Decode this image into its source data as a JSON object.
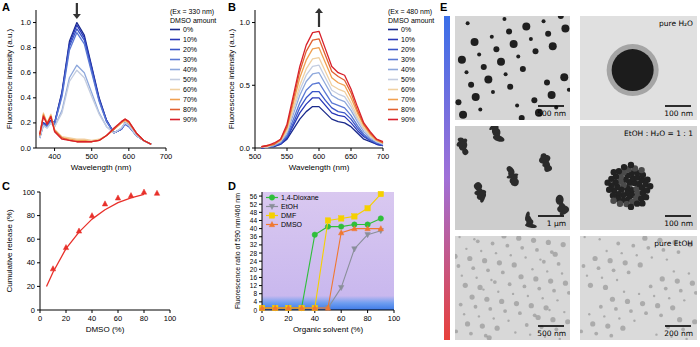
{
  "panels": [
    "A",
    "B",
    "C",
    "D",
    "E"
  ],
  "chart_data": [
    {
      "type": "line",
      "annotations": [
        "(Ex = 330 nm)",
        "DMSO amount"
      ],
      "x_label": "Wavelength (nm)",
      "y_label": "Fluorescence intensity (a.u.)",
      "x": [
        360,
        370,
        380,
        390,
        400,
        420,
        440,
        460,
        480,
        500,
        520,
        540,
        560,
        580,
        590,
        600,
        620,
        640,
        660
      ],
      "xlim": [
        350,
        700
      ],
      "xticks": [
        400,
        500,
        600,
        700
      ],
      "ylim": [
        0,
        1.1
      ],
      "yticks": [
        {
          "value": 0,
          "label": "0.0"
        },
        0.2,
        0.4,
        0.6,
        0.8,
        {
          "value": 1,
          "label": "1.0"
        }
      ],
      "legend": "right",
      "grid": false,
      "series": [
        {
          "name": "0%",
          "color": "#1a2a8c",
          "values": [
            0.08,
            0.2,
            0.18,
            0.22,
            0.2,
            0.45,
            0.85,
            1.0,
            0.9,
            0.65,
            0.4,
            0.22,
            0.12,
            0.15,
            0.2,
            0.18,
            0.1,
            0.06,
            0.03
          ]
        },
        {
          "name": "10%",
          "color": "#2838b8",
          "values": [
            0.08,
            0.2,
            0.18,
            0.22,
            0.2,
            0.44,
            0.83,
            0.98,
            0.88,
            0.64,
            0.39,
            0.22,
            0.12,
            0.15,
            0.2,
            0.18,
            0.1,
            0.06,
            0.03
          ]
        },
        {
          "name": "20%",
          "color": "#3a55c8",
          "values": [
            0.08,
            0.19,
            0.17,
            0.21,
            0.19,
            0.43,
            0.81,
            0.95,
            0.86,
            0.62,
            0.38,
            0.21,
            0.12,
            0.15,
            0.19,
            0.17,
            0.1,
            0.06,
            0.03
          ]
        },
        {
          "name": "30%",
          "color": "#5a78d4",
          "values": [
            0.08,
            0.19,
            0.17,
            0.21,
            0.19,
            0.41,
            0.78,
            0.92,
            0.83,
            0.6,
            0.37,
            0.21,
            0.12,
            0.15,
            0.19,
            0.17,
            0.1,
            0.06,
            0.03
          ]
        },
        {
          "name": "40%",
          "color": "#8ea8dc",
          "values": [
            0.08,
            0.18,
            0.16,
            0.2,
            0.17,
            0.3,
            0.56,
            0.66,
            0.6,
            0.44,
            0.28,
            0.17,
            0.12,
            0.16,
            0.2,
            0.18,
            0.1,
            0.06,
            0.03
          ]
        },
        {
          "name": "50%",
          "color": "#c4cde0",
          "values": [
            0.08,
            0.18,
            0.16,
            0.2,
            0.17,
            0.28,
            0.53,
            0.62,
            0.56,
            0.41,
            0.27,
            0.17,
            0.12,
            0.16,
            0.2,
            0.18,
            0.1,
            0.06,
            0.03
          ]
        },
        {
          "name": "60%",
          "color": "#f0d0a0",
          "values": [
            0.1,
            0.28,
            0.2,
            0.27,
            0.15,
            0.09,
            0.08,
            0.07,
            0.07,
            0.06,
            0.07,
            0.1,
            0.15,
            0.2,
            0.22,
            0.2,
            0.12,
            0.06,
            0.03
          ]
        },
        {
          "name": "70%",
          "color": "#f0a050",
          "values": [
            0.1,
            0.27,
            0.2,
            0.26,
            0.14,
            0.08,
            0.07,
            0.06,
            0.06,
            0.05,
            0.06,
            0.1,
            0.15,
            0.2,
            0.22,
            0.2,
            0.12,
            0.06,
            0.03
          ]
        },
        {
          "name": "80%",
          "color": "#e06030",
          "values": [
            0.1,
            0.26,
            0.19,
            0.25,
            0.14,
            0.08,
            0.06,
            0.05,
            0.05,
            0.05,
            0.06,
            0.1,
            0.15,
            0.21,
            0.23,
            0.21,
            0.12,
            0.06,
            0.03
          ]
        },
        {
          "name": "90%",
          "color": "#d8202a",
          "values": [
            0.11,
            0.25,
            0.19,
            0.25,
            0.13,
            0.07,
            0.06,
            0.05,
            0.05,
            0.05,
            0.06,
            0.1,
            0.16,
            0.21,
            0.23,
            0.21,
            0.12,
            0.06,
            0.03
          ]
        }
      ]
    },
    {
      "type": "line",
      "annotations": [
        "(Ex = 480 nm)",
        "DMSO amount"
      ],
      "x_label": "Wavelength (nm)",
      "y_label": "Fluorescence intensity (a.u.)",
      "x": [
        510,
        520,
        530,
        540,
        550,
        560,
        570,
        580,
        590,
        600,
        610,
        620,
        630,
        640,
        650,
        660,
        670,
        680,
        690,
        700
      ],
      "xlim": [
        500,
        700
      ],
      "xticks": [
        500,
        550,
        600,
        650,
        700
      ],
      "ylim": [
        0,
        1.1
      ],
      "yticks": [
        {
          "value": 0,
          "label": "0.0"
        },
        0.5,
        {
          "value": 1,
          "label": "1.0"
        }
      ],
      "legend": "right",
      "grid": false,
      "series": [
        {
          "name": "0%",
          "color": "#1a2a8c",
          "values": [
            0.0,
            0.01,
            0.01,
            0.03,
            0.07,
            0.15,
            0.23,
            0.29,
            0.33,
            0.33,
            0.28,
            0.23,
            0.21,
            0.2,
            0.17,
            0.12,
            0.07,
            0.05,
            0.03,
            0.02
          ]
        },
        {
          "name": "10%",
          "color": "#2838b8",
          "values": [
            0.0,
            0.01,
            0.02,
            0.03,
            0.08,
            0.18,
            0.28,
            0.35,
            0.4,
            0.4,
            0.34,
            0.28,
            0.26,
            0.25,
            0.2,
            0.14,
            0.09,
            0.06,
            0.03,
            0.02
          ]
        },
        {
          "name": "20%",
          "color": "#3a55c8",
          "values": [
            0.0,
            0.01,
            0.02,
            0.04,
            0.09,
            0.2,
            0.32,
            0.4,
            0.45,
            0.45,
            0.38,
            0.32,
            0.29,
            0.28,
            0.23,
            0.16,
            0.1,
            0.06,
            0.04,
            0.02
          ]
        },
        {
          "name": "30%",
          "color": "#5a78d4",
          "values": [
            0.01,
            0.01,
            0.02,
            0.04,
            0.1,
            0.23,
            0.36,
            0.46,
            0.51,
            0.52,
            0.44,
            0.36,
            0.34,
            0.32,
            0.26,
            0.18,
            0.11,
            0.07,
            0.04,
            0.03
          ]
        },
        {
          "name": "40%",
          "color": "#8ea8dc",
          "values": [
            0.01,
            0.01,
            0.02,
            0.05,
            0.12,
            0.27,
            0.42,
            0.53,
            0.59,
            0.6,
            0.51,
            0.42,
            0.39,
            0.37,
            0.3,
            0.21,
            0.13,
            0.08,
            0.05,
            0.03
          ]
        },
        {
          "name": "50%",
          "color": "#c4cde0",
          "values": [
            0.01,
            0.01,
            0.03,
            0.05,
            0.13,
            0.3,
            0.46,
            0.58,
            0.65,
            0.66,
            0.56,
            0.46,
            0.43,
            0.41,
            0.33,
            0.23,
            0.15,
            0.09,
            0.05,
            0.03
          ]
        },
        {
          "name": "60%",
          "color": "#f0d0a0",
          "values": [
            0.01,
            0.01,
            0.03,
            0.06,
            0.14,
            0.32,
            0.5,
            0.63,
            0.71,
            0.72,
            0.61,
            0.5,
            0.47,
            0.45,
            0.36,
            0.25,
            0.16,
            0.1,
            0.06,
            0.04
          ]
        },
        {
          "name": "70%",
          "color": "#f0a050",
          "values": [
            0.01,
            0.02,
            0.03,
            0.06,
            0.16,
            0.36,
            0.56,
            0.7,
            0.79,
            0.8,
            0.68,
            0.56,
            0.52,
            0.5,
            0.4,
            0.28,
            0.18,
            0.11,
            0.06,
            0.04
          ]
        },
        {
          "name": "80%",
          "color": "#e06030",
          "values": [
            0.01,
            0.02,
            0.03,
            0.07,
            0.17,
            0.39,
            0.61,
            0.77,
            0.86,
            0.87,
            0.74,
            0.61,
            0.57,
            0.54,
            0.44,
            0.3,
            0.19,
            0.12,
            0.07,
            0.04
          ]
        },
        {
          "name": "90%",
          "color": "#d8202a",
          "values": [
            0.01,
            0.02,
            0.04,
            0.07,
            0.19,
            0.42,
            0.65,
            0.82,
            0.92,
            0.93,
            0.79,
            0.65,
            0.6,
            0.58,
            0.47,
            0.33,
            0.2,
            0.13,
            0.07,
            0.05
          ]
        }
      ]
    },
    {
      "type": "scatter",
      "x_label": "DMSO (%)",
      "y_label": "Cumulative release (%)",
      "xlim": [
        0,
        100
      ],
      "xticks": [
        0,
        20,
        40,
        60,
        80,
        100
      ],
      "ylim": [
        0,
        100
      ],
      "yticks": [
        0,
        20,
        40,
        60,
        80,
        100
      ],
      "grid": false,
      "series": [
        {
          "type": "scatter",
          "marker": "triangle-up",
          "color": "#e8302a",
          "x": [
            10,
            20,
            30,
            40,
            50,
            60,
            70,
            80,
            90
          ],
          "values": [
            35,
            53,
            67,
            80,
            90,
            95,
            97,
            100,
            99
          ]
        },
        {
          "type": "line",
          "line_style": "solid",
          "color": "#e8302a",
          "x": [
            5,
            10,
            20,
            30,
            40,
            50,
            60,
            70,
            80
          ],
          "values": [
            20,
            32,
            52,
            66,
            77,
            85,
            91,
            95,
            98
          ]
        }
      ]
    },
    {
      "type": "line",
      "x_label": "Organic solvent (%)",
      "y_label": "Fluorescence ratio of 590 nm/460 nm",
      "x": [
        0,
        10,
        20,
        30,
        40,
        50,
        60,
        70,
        80,
        90
      ],
      "xlim": [
        0,
        100
      ],
      "xticks": [
        0,
        20,
        40,
        60,
        80,
        100
      ],
      "ylim": [
        0,
        58
      ],
      "yticks": [
        0,
        4,
        8,
        12,
        16,
        20,
        24,
        28,
        32,
        36,
        40,
        44,
        48,
        52,
        56
      ],
      "legend": "top-left",
      "grid": false,
      "series": [
        {
          "name": "1,4-Dioxane",
          "color": "#2fbf3a",
          "marker": "circle",
          "line_style": "solid",
          "values": [
            1,
            1,
            1,
            1,
            37,
            41,
            41,
            42,
            42,
            45
          ]
        },
        {
          "name": "EtOH",
          "color": "#8a8f9a",
          "marker": "triangle-down",
          "line_style": "solid",
          "values": [
            1,
            1,
            1,
            1,
            1,
            1,
            11,
            30,
            37,
            39
          ]
        },
        {
          "name": "DMF",
          "color": "#f5d000",
          "marker": "square",
          "line_style": "solid",
          "values": [
            1,
            1,
            1,
            1,
            1,
            44,
            45,
            46,
            50,
            57
          ]
        },
        {
          "name": "DMSO",
          "color": "#f07830",
          "marker": "triangle-up",
          "line_style": "solid",
          "values": [
            1,
            1,
            1,
            1,
            1,
            1,
            38,
            40,
            40,
            40
          ]
        }
      ]
    }
  ],
  "images": [
    {
      "scale_bar": "500 nm"
    },
    {
      "caption": "pure H₂O",
      "scale_bar": "100 nm"
    },
    {
      "scale_bar": "1 μm"
    },
    {
      "caption": "EtOH : H₂O = 1 : 1",
      "scale_bar": "100 nm"
    },
    {
      "scale_bar": "500 nm"
    },
    {
      "caption": "pure EtOH",
      "scale_bar": "200 nm"
    }
  ]
}
